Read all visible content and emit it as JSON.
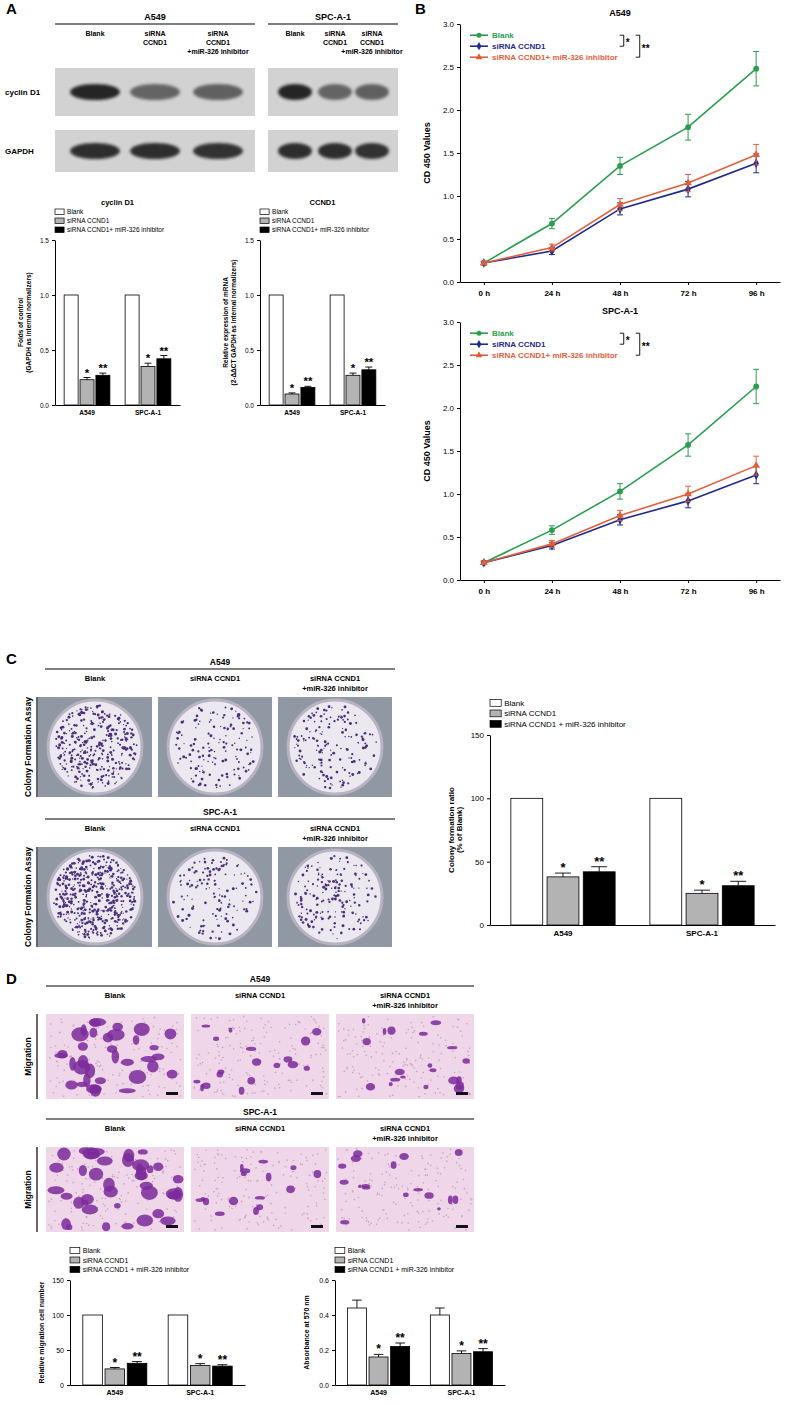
{
  "figure": {
    "panel_labels": [
      "A",
      "B",
      "C",
      "D"
    ],
    "blot": {
      "cell_lines": [
        "A549",
        "SPC-A-1"
      ],
      "lanes": [
        [
          "Blank"
        ],
        [
          "siRNA",
          "CCND1"
        ],
        [
          "siRNA",
          "CCND1",
          "+miR-326 inhibitor"
        ]
      ],
      "rows": [
        "cyclin D1",
        "GAPDH"
      ]
    },
    "colony": {
      "cell_lines": [
        "A549",
        "SPC-A-1"
      ],
      "lanes": [
        [
          "Blank"
        ],
        [
          "siRNA CCND1"
        ],
        [
          "siRNA CCND1",
          "+miR-326 inhibitor"
        ]
      ],
      "row_label": "Colony Formation Assay"
    },
    "migration": {
      "cell_lines": [
        "A549",
        "SPC-A-1"
      ],
      "lanes": [
        [
          "Blank"
        ],
        [
          "siRNA CCND1"
        ],
        [
          "siRNA CCND1",
          "+miR-326 inhibitor"
        ]
      ],
      "row_label": "Migration"
    }
  },
  "chart_data": [
    {
      "type": "bar",
      "title": "cyclin D1",
      "ylabel": "Folds of control (GAPDH as internal normalizers)",
      "categories": [
        "A549",
        "SPC-A-1"
      ],
      "ylim": [
        0,
        1.5
      ],
      "yticks": [
        {
          "value": 0,
          "label": "0.0"
        },
        0.5,
        {
          "value": 1,
          "label": "1.0"
        },
        1.5
      ],
      "legend": "top-left",
      "grid": false,
      "series": [
        {
          "name": "Blank",
          "color": "#ffffff",
          "values": [
            1,
            1
          ]
        },
        {
          "name": "siRNA CCND1",
          "color": "#b3b3b3",
          "values": [
            0.23,
            0.35
          ],
          "errors": [
            0.02,
            0.03
          ],
          "annotations": [
            "*",
            "*"
          ]
        },
        {
          "name": "siRNA CCND1+ miR-326 inhibitor",
          "color": "#000000",
          "values": [
            0.27,
            0.42
          ],
          "errors": [
            0.02,
            0.03
          ],
          "annotations": [
            "**",
            "**"
          ]
        }
      ]
    },
    {
      "type": "bar",
      "title": "CCND1",
      "ylabel": "Relative expression of mRNA (2-ΔΔCT GAPDH as internal normalizers)",
      "categories": [
        "A549",
        "SPC-A-1"
      ],
      "ylim": [
        0,
        1.5
      ],
      "yticks": [
        {
          "value": 0,
          "label": "0.0"
        },
        0.5,
        {
          "value": 1,
          "label": "1.0"
        },
        1.5
      ],
      "legend": "top-left",
      "grid": false,
      "series": [
        {
          "name": "Blank",
          "color": "#ffffff",
          "values": [
            1,
            1
          ]
        },
        {
          "name": "siRNA CCND1",
          "color": "#b3b3b3",
          "values": [
            0.1,
            0.27
          ],
          "errors": [
            0.01,
            0.02
          ],
          "annotations": [
            "*",
            "*"
          ]
        },
        {
          "name": "siRNA CCND1+ miR-326 inhibitor",
          "color": "#000000",
          "values": [
            0.16,
            0.32
          ],
          "errors": [
            0.01,
            0.025
          ],
          "annotations": [
            "**",
            "**"
          ]
        }
      ]
    },
    {
      "type": "line",
      "title": "A549",
      "ylabel": "CD 450 Values",
      "categories": [
        "0 h",
        "24 h",
        "48 h",
        "72 h",
        "96 h"
      ],
      "ylim": [
        0,
        3
      ],
      "yticks": [
        {
          "value": 0,
          "label": "0.0"
        },
        0.5,
        {
          "value": 1,
          "label": "1.0"
        },
        1.5,
        {
          "value": 2,
          "label": "2.0"
        },
        2.5,
        {
          "value": 3,
          "label": "3.0"
        }
      ],
      "legend": "top-left",
      "grid": false,
      "series": [
        {
          "name": "Blank",
          "color": "#2a9d4e",
          "marker": "circle",
          "line_style": "solid",
          "values": [
            0.22,
            0.68,
            1.35,
            1.8,
            2.48
          ],
          "errors": [
            0.02,
            0.06,
            0.1,
            0.15,
            0.2
          ]
        },
        {
          "name": "siRNA CCND1",
          "color": "#1f2a8c",
          "marker": "diamond",
          "line_style": "solid",
          "values": [
            0.22,
            0.36,
            0.85,
            1.08,
            1.38
          ],
          "errors": [
            0.02,
            0.04,
            0.07,
            0.09,
            0.11
          ],
          "annotation": "*"
        },
        {
          "name": "siRNA CCND1+ miR-326 inhibitor",
          "color": "#e0603c",
          "marker": "triangle",
          "line_style": "solid",
          "values": [
            0.22,
            0.4,
            0.9,
            1.15,
            1.48
          ],
          "errors": [
            0.02,
            0.04,
            0.07,
            0.1,
            0.12
          ],
          "annotation": "**"
        }
      ]
    },
    {
      "type": "line",
      "title": "SPC-A-1",
      "ylabel": "CD 450 Values",
      "categories": [
        "0 h",
        "24 h",
        "48 h",
        "72 h",
        "96 h"
      ],
      "ylim": [
        0,
        3
      ],
      "yticks": [
        {
          "value": 0,
          "label": "0.0"
        },
        0.5,
        {
          "value": 1,
          "label": "1.0"
        },
        1.5,
        {
          "value": 2,
          "label": "2.0"
        },
        2.5,
        {
          "value": 3,
          "label": "3.0"
        }
      ],
      "legend": "top-left",
      "grid": false,
      "series": [
        {
          "name": "Blank",
          "color": "#2a9d4e",
          "marker": "circle",
          "line_style": "solid",
          "values": [
            0.2,
            0.58,
            1.03,
            1.57,
            2.25
          ],
          "errors": [
            0.02,
            0.05,
            0.09,
            0.13,
            0.2
          ]
        },
        {
          "name": "siRNA CCND1",
          "color": "#1f2a8c",
          "marker": "diamond",
          "line_style": "solid",
          "values": [
            0.2,
            0.4,
            0.7,
            0.92,
            1.22
          ],
          "errors": [
            0.02,
            0.04,
            0.06,
            0.08,
            0.1
          ],
          "annotation": "*"
        },
        {
          "name": "siRNA CCND1+ miR-326 inhibitor",
          "color": "#e0603c",
          "marker": "triangle",
          "line_style": "solid",
          "values": [
            0.2,
            0.42,
            0.75,
            1.0,
            1.33
          ],
          "errors": [
            0.02,
            0.04,
            0.06,
            0.09,
            0.11
          ],
          "annotation": "**"
        }
      ]
    },
    {
      "type": "bar",
      "ylabel": "Colony formation ratio (% of Blank)",
      "categories": [
        "A549",
        "SPC-A-1"
      ],
      "ylim": [
        0,
        150
      ],
      "yticks": [
        0,
        50,
        100,
        150
      ],
      "legend": "top-left",
      "grid": false,
      "series": [
        {
          "name": "Blank",
          "color": "#ffffff",
          "values": [
            100,
            100
          ]
        },
        {
          "name": "siRNA CCND1",
          "color": "#b3b3b3",
          "values": [
            38,
            25
          ],
          "errors": [
            3,
            2.5
          ],
          "annotations": [
            "*",
            "*"
          ]
        },
        {
          "name": "siRNA CCND1 + miR-326 inhibitor",
          "color": "#000000",
          "values": [
            42,
            31
          ],
          "errors": [
            4,
            3.5
          ],
          "annotations": [
            "**",
            "**"
          ]
        }
      ]
    },
    {
      "type": "bar",
      "ylabel": "Relative migration cell number",
      "categories": [
        "A549",
        "SPC-A-1"
      ],
      "ylim": [
        0,
        150
      ],
      "yticks": [
        0,
        50,
        100,
        150
      ],
      "legend": "top-left",
      "grid": false,
      "series": [
        {
          "name": "Blank",
          "color": "#ffffff",
          "values": [
            100,
            100
          ]
        },
        {
          "name": "siRNA CCND1",
          "color": "#b3b3b3",
          "values": [
            23,
            28
          ],
          "errors": [
            2,
            2.5
          ],
          "annotations": [
            "*",
            "*"
          ]
        },
        {
          "name": "siRNA CCND1 + miR-326 inhibitor",
          "color": "#000000",
          "values": [
            31,
            27
          ],
          "errors": [
            2.5,
            2
          ],
          "annotations": [
            "**",
            "**"
          ]
        }
      ]
    },
    {
      "type": "bar",
      "ylabel": "Absorbance at 570 nm",
      "categories": [
        "A549",
        "SPC-A-1"
      ],
      "ylim": [
        0,
        0.6
      ],
      "yticks": [
        {
          "value": 0,
          "label": "0.0"
        },
        0.2,
        0.4,
        0.6
      ],
      "legend": "top-left",
      "grid": false,
      "series": [
        {
          "name": "Blank",
          "color": "#ffffff",
          "values": [
            0.44,
            0.4
          ],
          "errors": [
            0.045,
            0.04
          ]
        },
        {
          "name": "siRNA CCND1",
          "color": "#b3b3b3",
          "values": [
            0.16,
            0.18
          ],
          "errors": [
            0.015,
            0.015
          ],
          "annotations": [
            "*",
            "*"
          ]
        },
        {
          "name": "siRNA CCND1 + miR-326 inhibitor",
          "color": "#000000",
          "values": [
            0.22,
            0.19
          ],
          "errors": [
            0.02,
            0.018
          ],
          "annotations": [
            "**",
            "**"
          ]
        }
      ]
    }
  ]
}
